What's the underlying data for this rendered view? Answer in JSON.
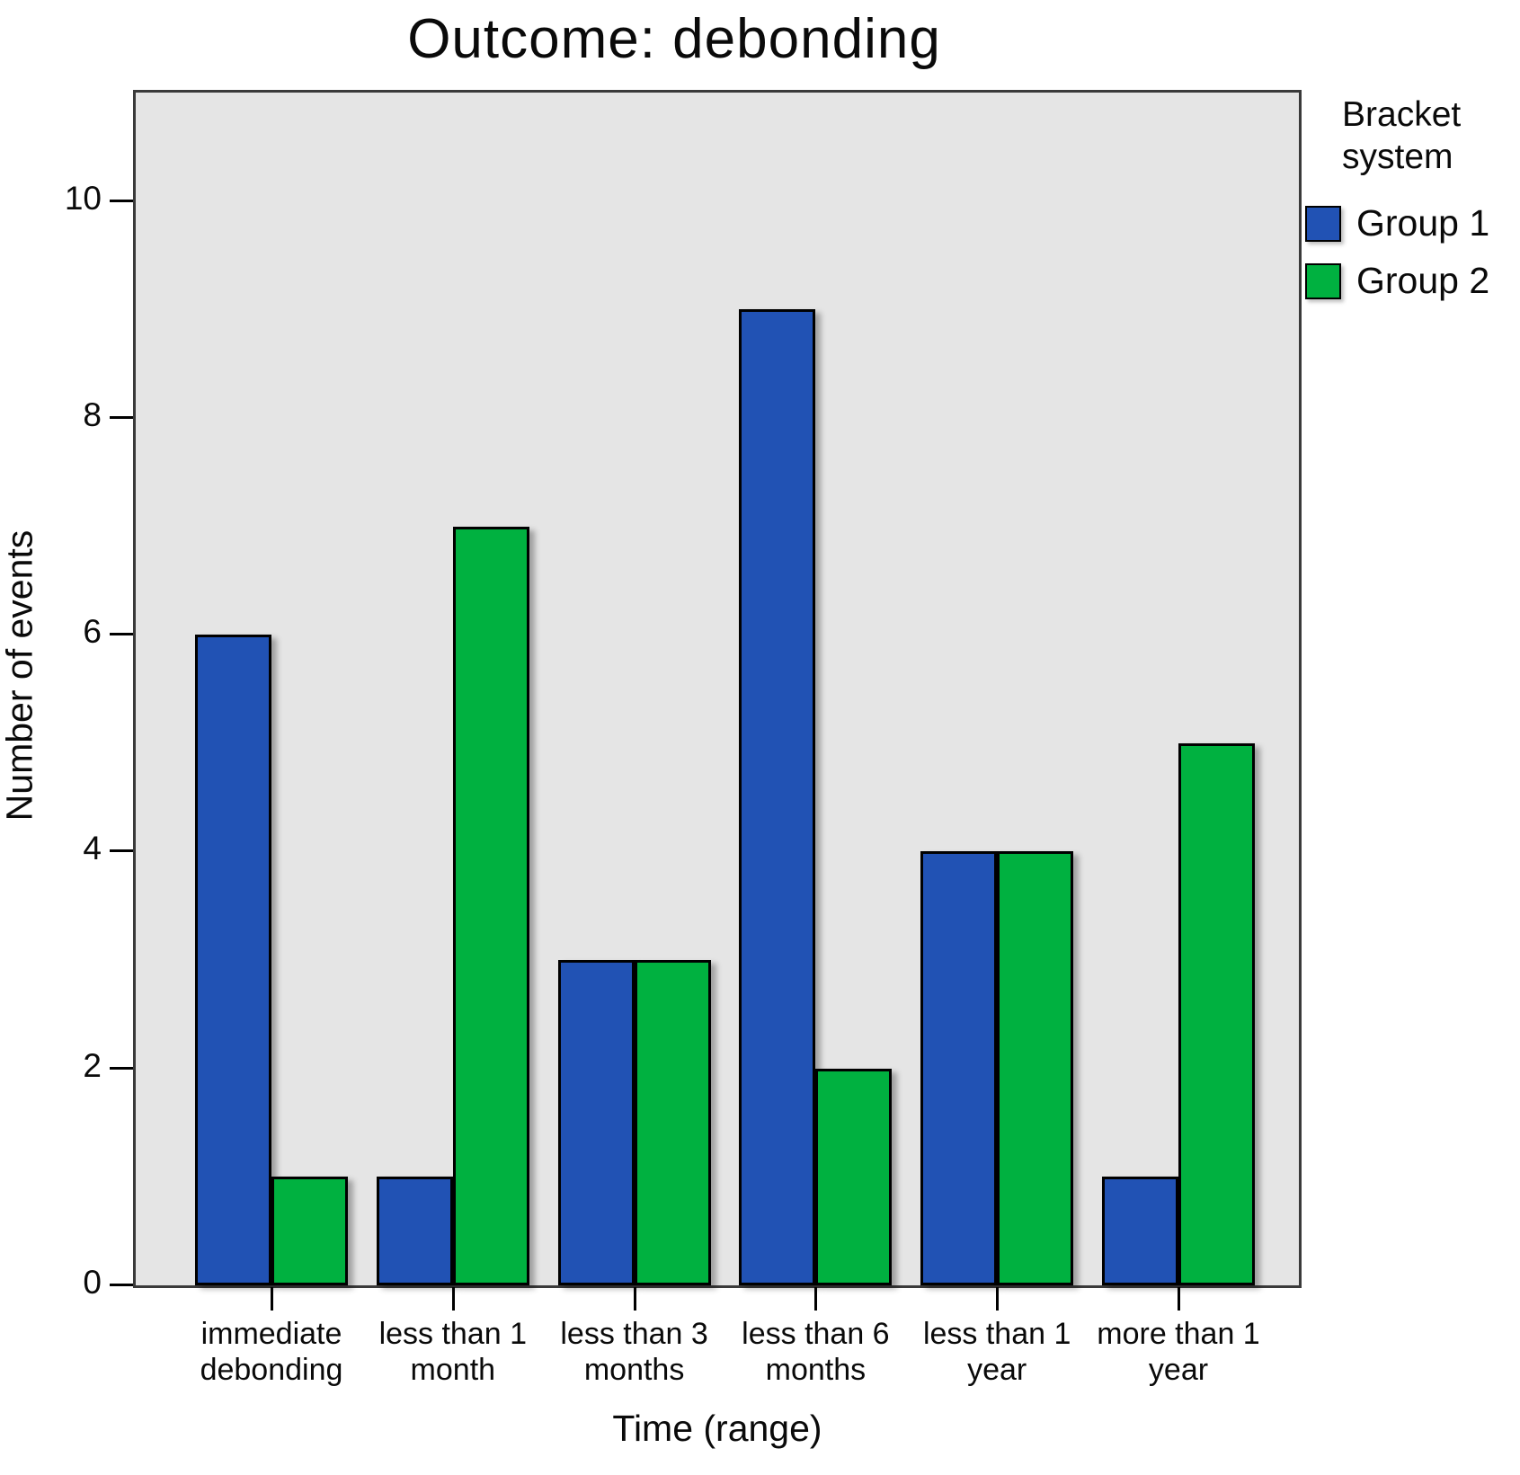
{
  "title": "Outcome: debonding",
  "y_axis": {
    "label": "Number of events"
  },
  "x_axis": {
    "label": "Time (range)"
  },
  "legend": {
    "title": "Bracket system",
    "items": [
      {
        "label": "Group 1",
        "color": "#2152b4"
      },
      {
        "label": "Group 2",
        "color": "#00b140"
      }
    ]
  },
  "colors": {
    "group1_blue": "#2152b4",
    "group2_green": "#00b140",
    "plot_background": "#e5e5e5",
    "bar_border": "#000000"
  },
  "chart_data": {
    "type": "bar",
    "title": "Outcome: debonding",
    "xlabel": "Time (range)",
    "ylabel": "Number of events",
    "categories": [
      "immediate debonding",
      "less than 1 month",
      "less than 3 months",
      "less than 6 months",
      "less than 1 year",
      "more than 1 year"
    ],
    "category_label_lines": [
      [
        "immediate",
        "debonding"
      ],
      [
        "less than 1",
        "month"
      ],
      [
        "less than 3",
        "months"
      ],
      [
        "less than 6",
        "months"
      ],
      [
        "less than 1",
        "year"
      ],
      [
        "more than 1",
        "year"
      ]
    ],
    "series": [
      {
        "name": "Group 1",
        "color": "#2152b4",
        "values": [
          6,
          1,
          3,
          9,
          4,
          1
        ]
      },
      {
        "name": "Group 2",
        "color": "#00b140",
        "values": [
          1,
          7,
          3,
          2,
          4,
          5
        ]
      }
    ],
    "ylim": [
      0,
      11
    ],
    "yticks": [
      0,
      2,
      4,
      6,
      8,
      10
    ],
    "grid": false,
    "legend_title": "Bracket system",
    "legend_position": "right-top-outside",
    "plot_background": "#e5e5e5"
  }
}
